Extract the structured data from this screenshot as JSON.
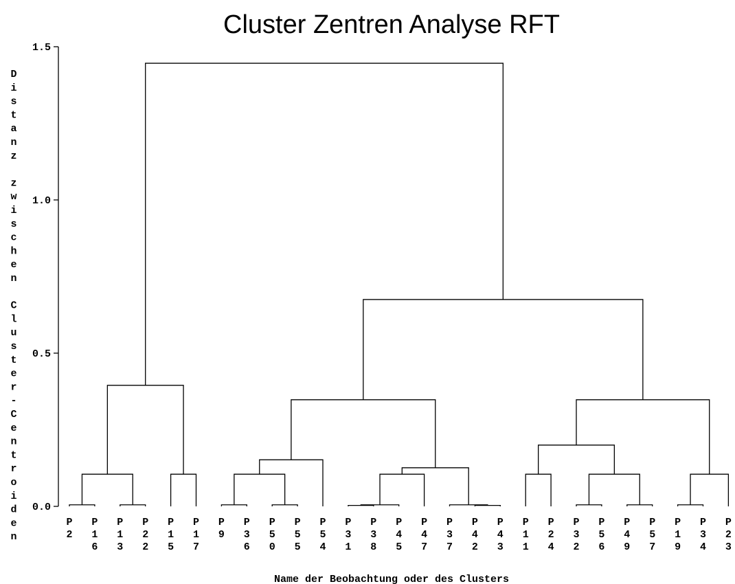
{
  "chart_data": {
    "type": "dendrogram",
    "title": "Cluster Zentren Analyse RFT",
    "ylabel": "Distanz zwischen Cluster-Centroiden",
    "xlabel": "Name der Beobachtung oder des Clusters",
    "ylim": [
      0,
      1.5
    ],
    "yticks": [
      {
        "value": 0,
        "label": "0.0"
      },
      0.5,
      {
        "value": 1,
        "label": "1.0"
      },
      {
        "value": 1.5,
        "label": "1.5"
      }
    ],
    "color": "#000000",
    "tree": {
      "height": 1.446,
      "children": [
        {
          "height": 0.395,
          "children": [
            {
              "height": 0.105,
              "children": [
                {
                  "height": 0.005,
                  "children": [
                    "P2",
                    "P16"
                  ]
                },
                {
                  "height": 0.005,
                  "children": [
                    "P13",
                    "P22"
                  ]
                }
              ]
            },
            {
              "height": 0.105,
              "children": [
                "P15",
                "P17"
              ]
            }
          ]
        },
        {
          "height": 0.675,
          "children": [
            {
              "height": 0.348,
              "children": [
                {
                  "height": 0.152,
                  "children": [
                    {
                      "height": 0.105,
                      "children": [
                        {
                          "height": 0.005,
                          "children": [
                            "P9",
                            "P36"
                          ]
                        },
                        {
                          "height": 0.005,
                          "children": [
                            "P50",
                            "P55"
                          ]
                        }
                      ]
                    },
                    "P54"
                  ]
                },
                {
                  "height": 0.126,
                  "children": [
                    {
                      "height": 0.105,
                      "children": [
                        {
                          "height": 0.005,
                          "children": [
                            {
                              "height": 0.003,
                              "children": [
                                "P31",
                                "P38"
                              ]
                            },
                            "P45"
                          ]
                        },
                        "P47"
                      ]
                    },
                    {
                      "height": 0.005,
                      "children": [
                        "P37",
                        {
                          "height": 0.003,
                          "children": [
                            "P42",
                            "P43"
                          ]
                        }
                      ]
                    }
                  ]
                }
              ]
            },
            {
              "height": 0.348,
              "children": [
                {
                  "height": 0.2,
                  "children": [
                    {
                      "height": 0.105,
                      "children": [
                        "P11",
                        "P24"
                      ]
                    },
                    {
                      "height": 0.105,
                      "children": [
                        {
                          "height": 0.005,
                          "children": [
                            "P32",
                            "P56"
                          ]
                        },
                        {
                          "height": 0.005,
                          "children": [
                            "P49",
                            "P57"
                          ]
                        }
                      ]
                    }
                  ]
                },
                {
                  "height": 0.105,
                  "children": [
                    {
                      "height": 0.005,
                      "children": [
                        "P19",
                        "P34"
                      ]
                    },
                    "P23"
                  ]
                }
              ]
            }
          ]
        }
      ]
    }
  }
}
